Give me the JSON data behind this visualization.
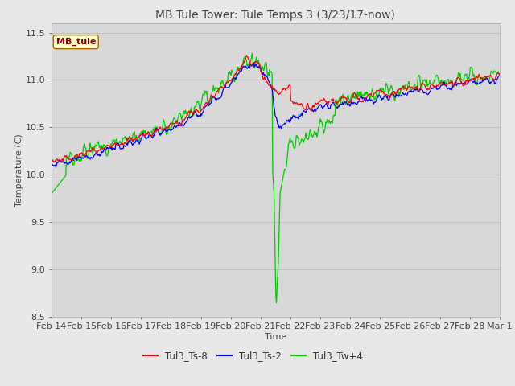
{
  "title": "MB Tule Tower: Tule Temps 3 (3/23/17-now)",
  "xlabel": "Time",
  "ylabel": "Temperature (C)",
  "ylim": [
    8.5,
    11.6
  ],
  "yticks": [
    8.5,
    9.0,
    9.5,
    10.0,
    10.5,
    11.0,
    11.5
  ],
  "xtick_labels": [
    "Feb 14",
    "Feb 15",
    "Feb 16",
    "Feb 17",
    "Feb 18",
    "Feb 19",
    "Feb 20",
    "Feb 21",
    "Feb 22",
    "Feb 23",
    "Feb 24",
    "Feb 25",
    "Feb 26",
    "Feb 27",
    "Feb 28",
    "Mar 1"
  ],
  "legend_label": "MB_tule",
  "series_labels": [
    "Tul3_Ts-8",
    "Tul3_Ts-2",
    "Tul3_Tw+4"
  ],
  "colors": [
    "#ff0000",
    "#0000ff",
    "#00cc00"
  ],
  "bg_color": "#e8e8e8",
  "plot_bg_color": "#d8d8d8",
  "title_fontsize": 10,
  "axis_fontsize": 8,
  "tick_fontsize": 8
}
